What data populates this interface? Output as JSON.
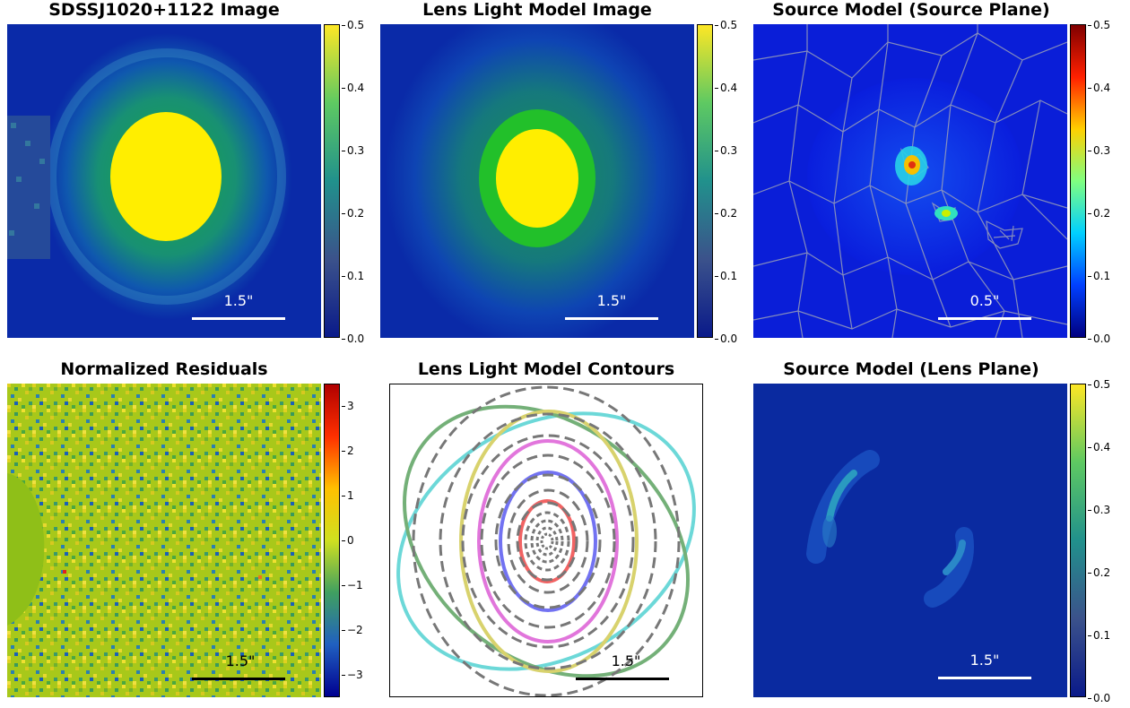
{
  "panels": [
    {
      "title": "SDSSJ1020+1122 Image",
      "scale": "1.5\"",
      "cbar": [
        "0.5",
        "0.4",
        "0.3",
        "0.2",
        "0.1",
        "0.0"
      ]
    },
    {
      "title": "Lens Light Model Image",
      "scale": "1.5\"",
      "cbar": [
        "0.5",
        "0.4",
        "0.3",
        "0.2",
        "0.1",
        "0.0"
      ]
    },
    {
      "title": "Source Model (Source Plane)",
      "scale": "0.5\"",
      "cbar": [
        "0.5",
        "0.4",
        "0.3",
        "0.2",
        "0.1",
        "0.0"
      ]
    },
    {
      "title": "Normalized Residuals",
      "scale": "1.5\"",
      "cbar": [
        "3",
        "2",
        "1",
        "0",
        "−1",
        "−2",
        "−3"
      ]
    },
    {
      "title": "Lens Light Model Contours",
      "scale": "1.5\""
    },
    {
      "title": "Source Model (Lens Plane)",
      "scale": "1.5\"",
      "cbar": [
        "0.5",
        "0.4",
        "0.3",
        "0.2",
        "0.1",
        "0.0"
      ]
    }
  ],
  "colors": {
    "image_background": "#0a2aa8",
    "saturated_core": "#ffee00",
    "glow": "#22c02a",
    "residual_base": "#8fbf18",
    "contour_grey": "#777777",
    "contour_red": "#ee4444",
    "contour_blue": "#5555ee",
    "contour_magenta": "#dd55dd",
    "contour_yellow": "#cccc44",
    "contour_green": "#44994a",
    "contour_cyan": "#44cccc"
  }
}
